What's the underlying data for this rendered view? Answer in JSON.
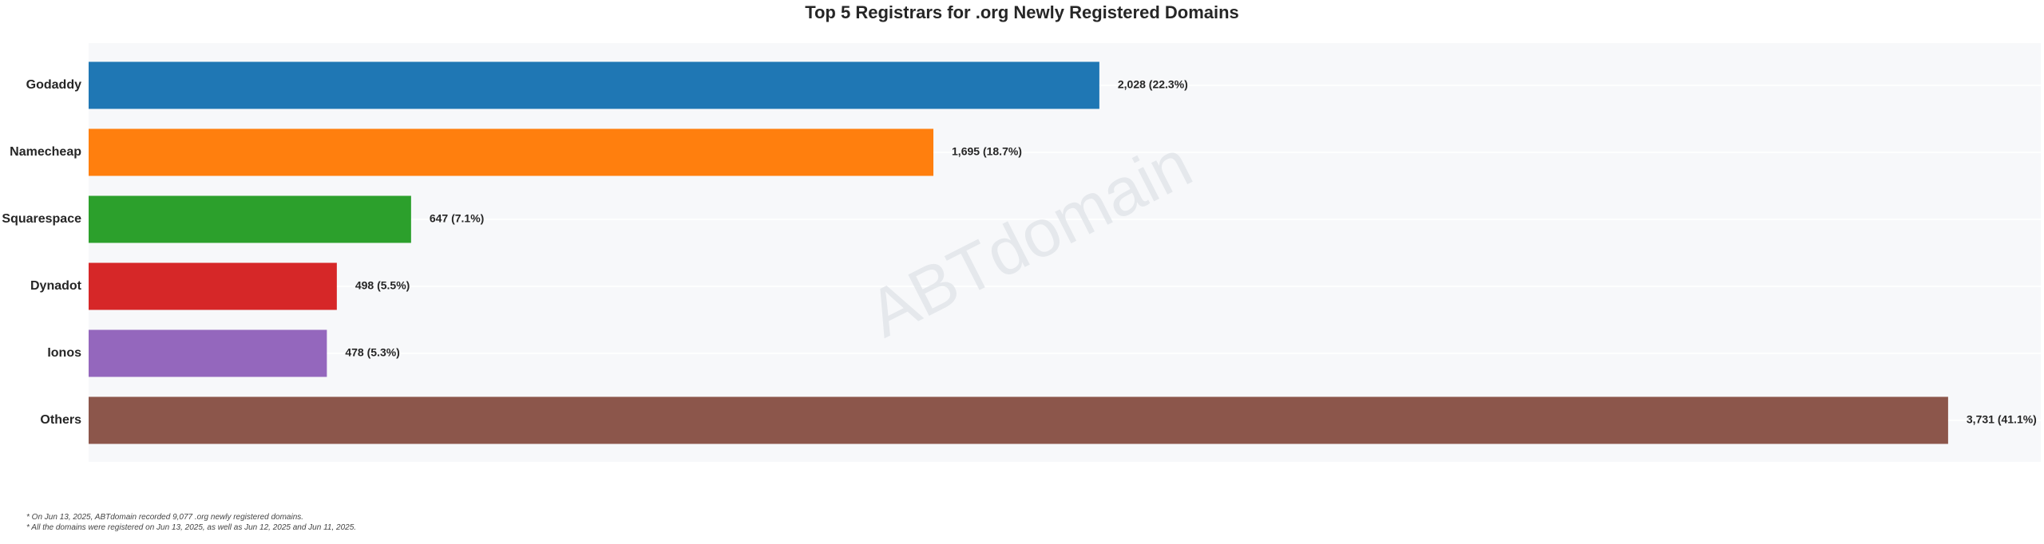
{
  "chart_data": {
    "type": "bar",
    "orientation": "horizontal",
    "title": "Top 5 Registrars for .org Newly Registered Domains",
    "xlabel": "",
    "ylabel": "",
    "categories": [
      "Godaddy",
      "Namecheap",
      "Squarespace",
      "Dynadot",
      "Ionos",
      "Others"
    ],
    "values": [
      2028,
      1695,
      647,
      498,
      478,
      3731
    ],
    "data_labels": [
      "2,028 (22.3%)",
      "1,695 (18.7%)",
      "647 (7.1%)",
      "498 (5.5%)",
      "478 (5.3%)",
      "3,731 (41.1%)"
    ],
    "colors": [
      "#1f77b4",
      "#ff7f0e",
      "#2ca02c",
      "#d62728",
      "#9467bd",
      "#8c564b"
    ],
    "xlim": [
      0,
      3917
    ],
    "grid": true,
    "watermark": "ABTdomain"
  },
  "footnotes": [
    "* On Jun 13, 2025, ABTdomain recorded 9,077 .org newly registered domains.",
    "* All the domains were registered on Jun 13, 2025, as well as Jun 12, 2025 and Jun 11, 2025."
  ]
}
